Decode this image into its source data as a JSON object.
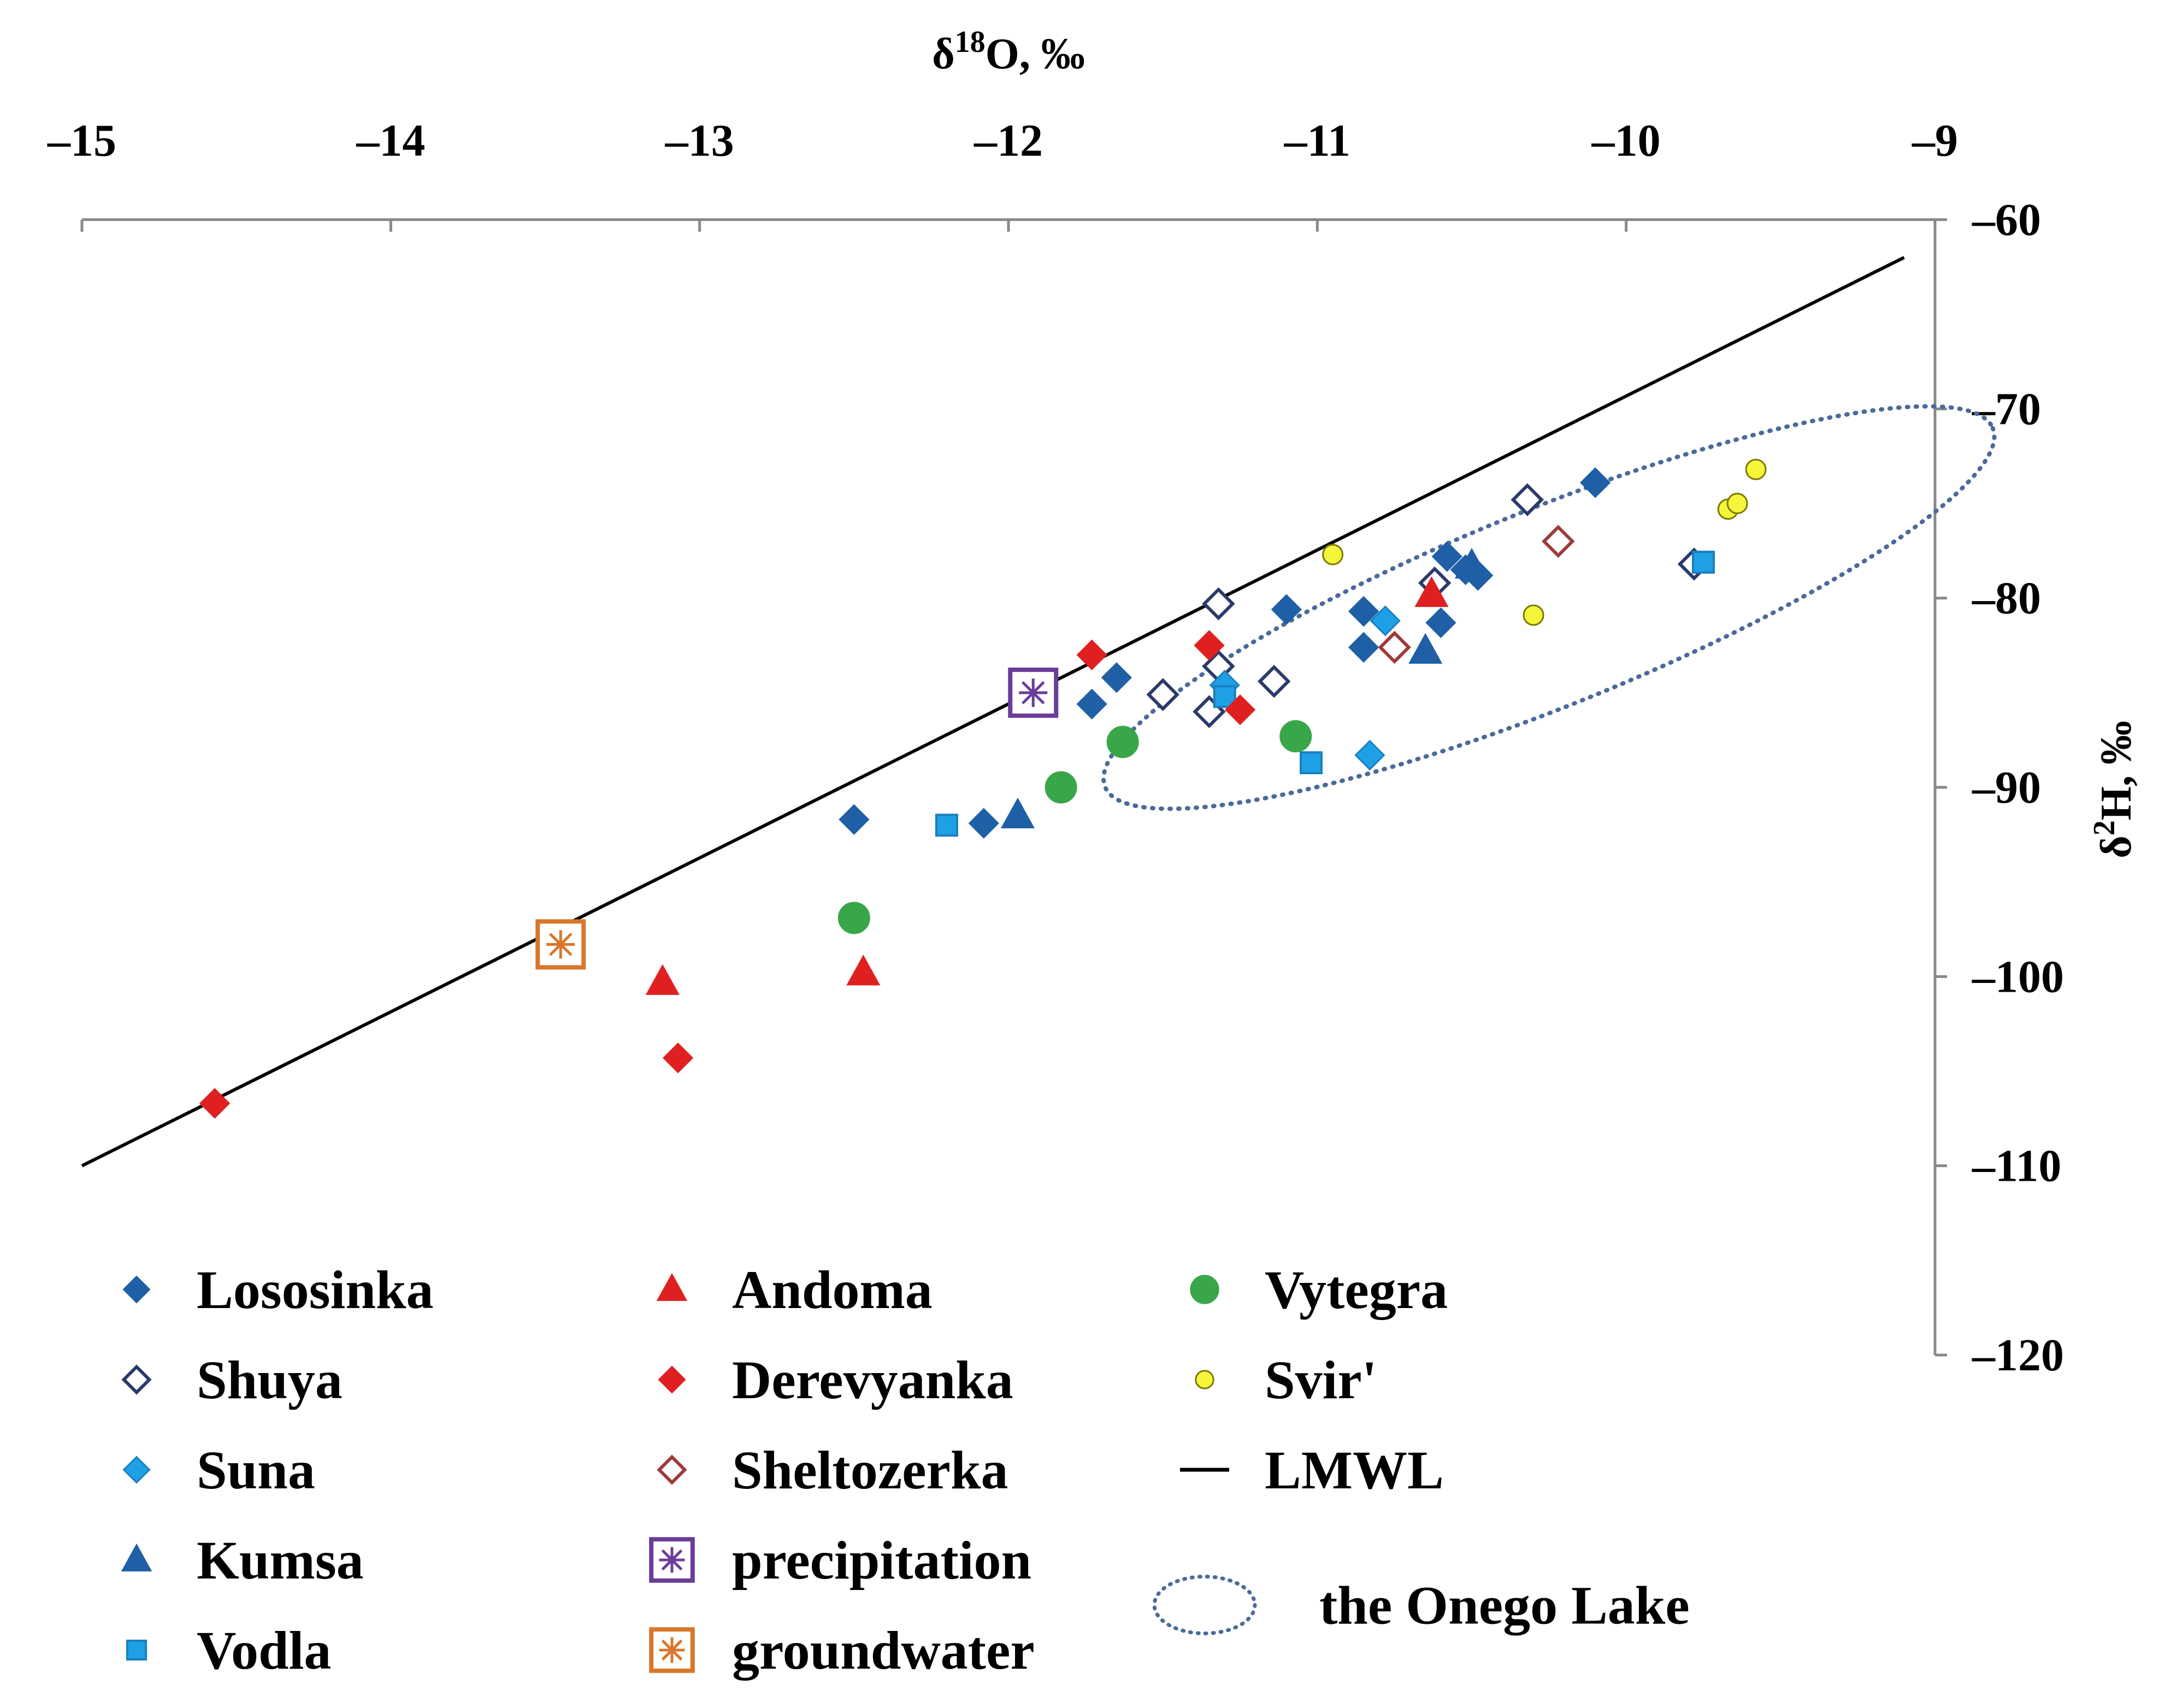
{
  "chart_data": {
    "type": "scatter",
    "xlabel": "δ18O, ‰",
    "ylabel": "δ2H, ‰",
    "xlim": [
      -15,
      -9
    ],
    "ylim": [
      -120,
      -60
    ],
    "x_ticks": [
      -15,
      -14,
      -13,
      -12,
      -11,
      -10,
      -9
    ],
    "y_ticks": [
      -60,
      -70,
      -80,
      -90,
      -100,
      -110,
      -120
    ],
    "x_tick_labels": [
      "–15",
      "–14",
      "–13",
      "–12",
      "–11",
      "–10",
      "–9"
    ],
    "y_tick_labels": [
      "–60",
      "–70",
      "–80",
      "–90",
      "–100",
      "–110",
      "–120"
    ],
    "x_axis_position": "top",
    "y_axis_position": "right",
    "grid": false,
    "legend_position": "bottom",
    "colors": {
      "dark_blue": "#1f5fa6",
      "light_blue": "#1ea0e6",
      "red": "#e02020",
      "green": "#3aa64a",
      "yellow": "#f5f53c",
      "purple": "#6b3c9b",
      "orange": "#d9762b",
      "dark_red": "#9e3a3a",
      "navy": "#2a3a6a",
      "ellipse": "#4a6a9a"
    },
    "lmwl": {
      "x": [
        -15,
        -9.1
      ],
      "y": [
        -110,
        -62
      ]
    },
    "lake_region": {
      "label": "the Onego Lake",
      "cx": -10.25,
      "cy": -80.5,
      "half_x": 1.55,
      "half_y": 5.2,
      "rotation_deg": -22
    },
    "series": [
      {
        "name": "Lososinka",
        "marker": "diamond",
        "fill": "#1f5fa6",
        "stroke": "#1f5fa6",
        "points": [
          [
            -12.5,
            -91.7
          ],
          [
            -12.08,
            -91.9
          ],
          [
            -11.73,
            -85.6
          ],
          [
            -11.65,
            -84.2
          ],
          [
            -11.1,
            -80.6
          ],
          [
            -10.85,
            -80.7
          ],
          [
            -10.85,
            -82.6
          ],
          [
            -10.6,
            -81.3
          ],
          [
            -10.58,
            -77.8
          ],
          [
            -10.52,
            -78.5
          ],
          [
            -10.48,
            -78.8
          ],
          [
            -10.1,
            -73.9
          ]
        ]
      },
      {
        "name": "Shuya",
        "marker": "diamond-open",
        "fill": "#ffffff",
        "stroke": "#2a3a6a",
        "points": [
          [
            -11.5,
            -85.1
          ],
          [
            -11.35,
            -86.0
          ],
          [
            -11.32,
            -83.6
          ],
          [
            -11.32,
            -80.3
          ],
          [
            -11.14,
            -84.4
          ],
          [
            -10.62,
            -79.2
          ],
          [
            -10.32,
            -74.8
          ],
          [
            -9.78,
            -78.2
          ]
        ]
      },
      {
        "name": "Suna",
        "marker": "diamond",
        "fill": "#1ea0e6",
        "stroke": "#1a7fc0",
        "points": [
          [
            -11.3,
            -84.6
          ],
          [
            -10.83,
            -88.3
          ],
          [
            -10.78,
            -81.2
          ]
        ]
      },
      {
        "name": "Kumsa",
        "marker": "triangle",
        "fill": "#1f5fa6",
        "stroke": "#1f5fa6",
        "points": [
          [
            -11.97,
            -91.5
          ],
          [
            -10.65,
            -82.8
          ],
          [
            -10.5,
            -78.3
          ]
        ]
      },
      {
        "name": "Vodla",
        "marker": "square",
        "fill": "#1ea0e6",
        "stroke": "#1a7fc0",
        "points": [
          [
            -12.2,
            -92.0
          ],
          [
            -11.3,
            -85.2
          ],
          [
            -11.02,
            -88.7
          ],
          [
            -9.75,
            -78.1
          ]
        ]
      },
      {
        "name": "Andoma",
        "marker": "triangle",
        "fill": "#e02020",
        "stroke": "#e02020",
        "points": [
          [
            -13.12,
            -100.3
          ],
          [
            -12.47,
            -99.8
          ],
          [
            -10.63,
            -79.8
          ]
        ]
      },
      {
        "name": "Derevyanka",
        "marker": "diamond",
        "fill": "#e02020",
        "stroke": "#e02020",
        "points": [
          [
            -14.57,
            -106.7
          ],
          [
            -13.07,
            -104.3
          ],
          [
            -11.73,
            -83.0
          ],
          [
            -11.35,
            -82.5
          ],
          [
            -11.25,
            -85.9
          ]
        ]
      },
      {
        "name": "Sheltozerka",
        "marker": "diamond-open",
        "fill": "#ffffff",
        "stroke": "#9e3a3a",
        "points": [
          [
            -10.75,
            -82.6
          ],
          [
            -10.22,
            -77.0
          ]
        ]
      },
      {
        "name": "precipitation",
        "marker": "boxed-star",
        "fill": "#ffffff",
        "stroke": "#6b3c9b",
        "points": [
          [
            -11.92,
            -85.0
          ]
        ]
      },
      {
        "name": "groundwater",
        "marker": "boxed-star",
        "fill": "#ffffff",
        "stroke": "#d9762b",
        "points": [
          [
            -13.45,
            -98.3
          ]
        ]
      },
      {
        "name": "Vytegra",
        "marker": "circle",
        "fill": "#3aa64a",
        "stroke": "#3aa64a",
        "points": [
          [
            -12.5,
            -96.9
          ],
          [
            -11.83,
            -90.0
          ],
          [
            -11.63,
            -87.6
          ],
          [
            -11.07,
            -87.3
          ]
        ]
      },
      {
        "name": "Svir'",
        "marker": "circle-small",
        "fill": "#f5f53c",
        "stroke": "#7a7a00",
        "points": [
          [
            -10.95,
            -77.7
          ],
          [
            -10.3,
            -80.9
          ],
          [
            -9.67,
            -75.3
          ],
          [
            -9.64,
            -75.0
          ],
          [
            -9.58,
            -73.2
          ]
        ]
      }
    ],
    "legend": [
      {
        "key": "Lososinka",
        "label": "Lososinka",
        "col": 0,
        "row": 0
      },
      {
        "key": "Shuya",
        "label": "Shuya",
        "col": 0,
        "row": 1
      },
      {
        "key": "Suna",
        "label": "Suna",
        "col": 0,
        "row": 2
      },
      {
        "key": "Kumsa",
        "label": "Kumsa",
        "col": 0,
        "row": 3
      },
      {
        "key": "Vodla",
        "label": "Vodla",
        "col": 0,
        "row": 4
      },
      {
        "key": "Andoma",
        "label": "Andoma",
        "col": 1,
        "row": 0
      },
      {
        "key": "Derevyanka",
        "label": "Derevyanka",
        "col": 1,
        "row": 1
      },
      {
        "key": "Sheltozerka",
        "label": "Sheltozerka",
        "col": 1,
        "row": 2
      },
      {
        "key": "precipitation",
        "label": "precipitation",
        "col": 1,
        "row": 3
      },
      {
        "key": "groundwater",
        "label": "groundwater",
        "col": 1,
        "row": 4
      },
      {
        "key": "Vytegra",
        "label": "Vytegra",
        "col": 2,
        "row": 0
      },
      {
        "key": "Svir'",
        "label": "Svir'",
        "col": 2,
        "row": 1
      },
      {
        "key": "LMWL",
        "label": "LMWL",
        "col": 2,
        "row": 2,
        "marker": "line"
      },
      {
        "key": "lake",
        "label": "the Onego Lake",
        "col": 2,
        "row": 3.5,
        "marker": "ellipse"
      }
    ]
  }
}
